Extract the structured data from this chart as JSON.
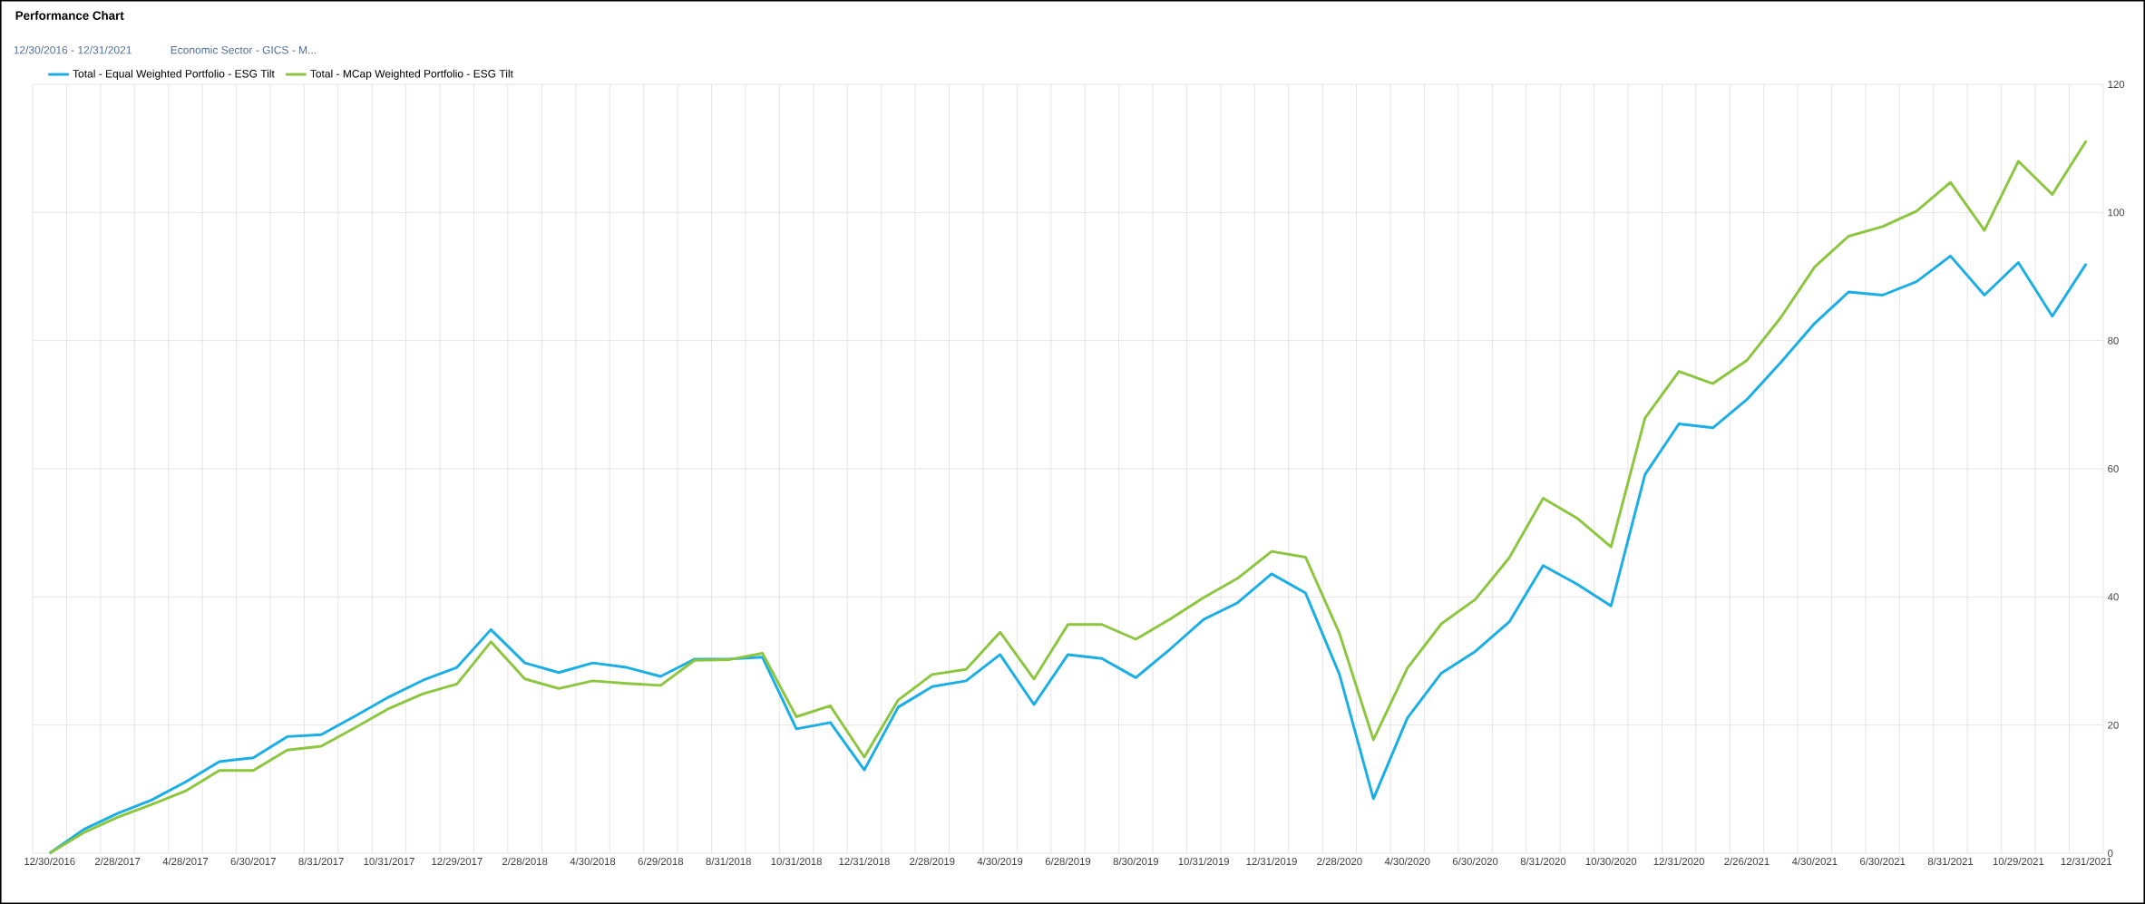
{
  "chart_data": {
    "type": "line",
    "title": "Performance Chart",
    "subtitle": "12/30/2016 - 12/31/2021",
    "annotations": [
      "Economic Sector - GICS - M..."
    ],
    "categories": [
      "12/30/2016",
      null,
      "2/28/2017",
      null,
      "4/28/2017",
      null,
      "6/30/2017",
      null,
      "8/31/2017",
      null,
      "10/31/2017",
      null,
      "12/29/2017",
      null,
      "2/28/2018",
      null,
      "4/30/2018",
      null,
      "6/29/2018",
      null,
      "8/31/2018",
      null,
      "10/31/2018",
      null,
      "12/31/2018",
      null,
      "2/28/2019",
      null,
      "4/30/2019",
      null,
      "6/28/2019",
      null,
      "8/30/2019",
      null,
      "10/31/2019",
      null,
      "12/31/2019",
      null,
      "2/28/2020",
      null,
      "4/30/2020",
      null,
      "6/30/2020",
      null,
      "8/31/2020",
      null,
      "10/30/2020",
      null,
      "12/31/2020",
      null,
      "2/26/2021",
      null,
      "4/30/2021",
      null,
      "6/30/2021",
      null,
      "8/31/2021",
      null,
      "10/29/2021",
      null,
      "12/31/2021"
    ],
    "series": [
      {
        "name": "Total - Equal Weighted Portfolio - ESG Tilt",
        "color": "#19aee6",
        "values": [
          0,
          3.7,
          6.2,
          8.3,
          11.1,
          14.3,
          14.9,
          18.2,
          18.5,
          21.4,
          24.4,
          27.0,
          29.0,
          34.9,
          29.7,
          28.2,
          29.7,
          29.0,
          27.6,
          30.3,
          30.3,
          30.6,
          19.4,
          20.4,
          13.0,
          22.8,
          26.0,
          26.9,
          31.0,
          23.2,
          31.0,
          30.4,
          27.4,
          31.8,
          36.5,
          39.1,
          43.6,
          40.6,
          27.9,
          8.5,
          21.1,
          28.1,
          31.5,
          36.1,
          44.9,
          42.0,
          38.6,
          59.1,
          67.0,
          66.4,
          70.8,
          76.6,
          82.7,
          87.6,
          87.1,
          89.2,
          93.2,
          87.1,
          92.2,
          83.8,
          92.0
        ]
      },
      {
        "name": "Total - MCap Weighted Portfolio - ESG Tilt",
        "color": "#8cc63e",
        "values": [
          0,
          3.2,
          5.6,
          7.6,
          9.7,
          12.9,
          12.9,
          16.1,
          16.7,
          19.6,
          22.6,
          24.9,
          26.4,
          33.0,
          27.2,
          25.7,
          26.9,
          26.5,
          26.2,
          30.1,
          30.2,
          31.2,
          21.3,
          23.0,
          15.0,
          23.9,
          27.9,
          28.7,
          34.5,
          27.2,
          35.7,
          35.7,
          33.4,
          36.5,
          39.9,
          42.9,
          47.1,
          46.2,
          34.3,
          17.7,
          28.9,
          35.8,
          39.6,
          46.1,
          55.4,
          52.3,
          47.8,
          67.9,
          75.2,
          73.3,
          76.9,
          83.6,
          91.5,
          96.3,
          97.8,
          100.2,
          104.7,
          97.2,
          108.0,
          102.8,
          111.2
        ]
      }
    ],
    "ylim": [
      0,
      120
    ],
    "yticks": [
      0,
      20,
      40,
      60,
      80,
      100,
      120
    ],
    "grid": true,
    "legend": "top left",
    "marker": "none",
    "line_style": "solid"
  }
}
